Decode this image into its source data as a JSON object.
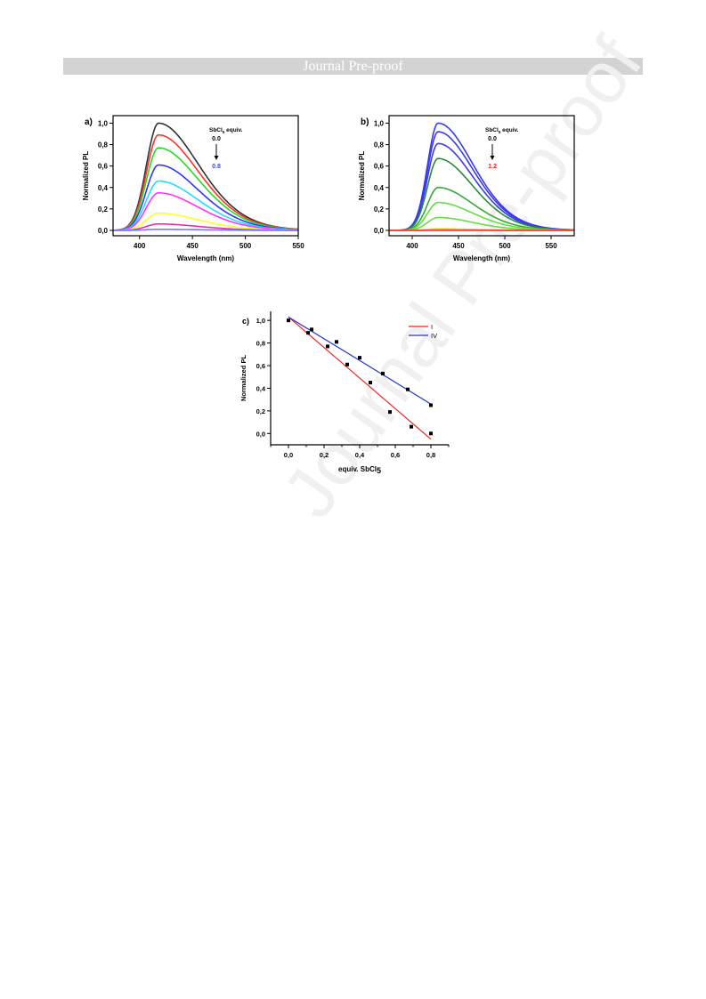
{
  "header": {
    "title": "Journal Pre-proof"
  },
  "watermark": {
    "text": "Journal Pre-proof"
  },
  "colors": {
    "header_bg": "#d3d3d3",
    "watermark": "#f0f0f0"
  },
  "chart_data": [
    {
      "type": "line",
      "panel_label": "a)",
      "xlabel": "Wavelength (nm)",
      "ylabel": "Normalized PL",
      "xlim": [
        375,
        550
      ],
      "ylim": [
        -0.05,
        1.07
      ],
      "xticks": [
        400,
        450,
        500,
        550
      ],
      "yticks": [
        0.0,
        0.2,
        0.4,
        0.6,
        0.8,
        1.0
      ],
      "ytick_labels": [
        "0,0",
        "0,2",
        "0,4",
        "0,6",
        "0,8",
        "1,0"
      ],
      "annotation": {
        "title": "SbCl",
        "title_sub": "5",
        "title_suffix": " equiv.",
        "start": "0.0",
        "end": "0.8",
        "end_color": "#2f4fd0"
      },
      "peak_nm": 418,
      "series": [
        {
          "peak": 1.0,
          "color": "#333333"
        },
        {
          "peak": 0.89,
          "color": "#ff3030"
        },
        {
          "peak": 0.77,
          "color": "#22dd22"
        },
        {
          "peak": 0.61,
          "color": "#3333ff"
        },
        {
          "peak": 0.46,
          "color": "#22ddff"
        },
        {
          "peak": 0.35,
          "color": "#ff33ff"
        },
        {
          "peak": 0.16,
          "color": "#ffff22"
        },
        {
          "peak": 0.06,
          "color": "#dd33aa"
        },
        {
          "peak": 0.01,
          "color": "#7777ff"
        }
      ]
    },
    {
      "type": "line",
      "panel_label": "b)",
      "xlabel": "Wavelength (nm)",
      "ylabel": "Normalized PL",
      "xlim": [
        375,
        575
      ],
      "ylim": [
        -0.05,
        1.07
      ],
      "xticks": [
        400,
        450,
        500,
        550
      ],
      "yticks": [
        0.0,
        0.2,
        0.4,
        0.6,
        0.8,
        1.0
      ],
      "ytick_labels": [
        "0,0",
        "0,2",
        "0,4",
        "0,6",
        "0,8",
        "1,0"
      ],
      "annotation": {
        "title": "SbCl",
        "title_sub": "5",
        "title_suffix": " equiv.",
        "start": "0.0",
        "end": "1.2",
        "end_color": "#ee2222"
      },
      "peak_nm": 428,
      "series": [
        {
          "peak": 1.0,
          "color": "#3a3aee"
        },
        {
          "peak": 0.92,
          "color": "#3a3aee"
        },
        {
          "peak": 0.81,
          "color": "#3a3aee"
        },
        {
          "peak": 0.67,
          "color": "#2a8a3a"
        },
        {
          "peak": 0.4,
          "color": "#33aa33"
        },
        {
          "peak": 0.26,
          "color": "#66dd44"
        },
        {
          "peak": 0.12,
          "color": "#66dd44"
        },
        {
          "peak": 0.015,
          "color": "#dddd22"
        },
        {
          "peak": 0.005,
          "color": "#ff8833"
        },
        {
          "peak": 0.0,
          "color": "#ee3333"
        }
      ]
    },
    {
      "type": "scatter",
      "panel_label": "c)",
      "xlabel": "equiv. SbCl",
      "xlabel_sub": "5",
      "ylabel": "Normalized PL",
      "xlim": [
        -0.1,
        0.9
      ],
      "ylim": [
        -0.1,
        1.08
      ],
      "xticks": [
        0.0,
        0.2,
        0.4,
        0.6,
        0.8
      ],
      "xtick_labels": [
        "0,0",
        "0,2",
        "0,4",
        "0,6",
        "0,8"
      ],
      "yticks": [
        0.0,
        0.2,
        0.4,
        0.6,
        0.8,
        1.0
      ],
      "ytick_labels": [
        "0,0",
        "0,2",
        "0,4",
        "0,6",
        "0,8",
        "1,0"
      ],
      "legend_position": "top-right",
      "series": [
        {
          "name": "I",
          "color": "#ee2222",
          "fit": [
            [
              0.0,
              1.03
            ],
            [
              0.8,
              -0.05
            ]
          ],
          "points": [
            [
              0.0,
              1.0
            ],
            [
              0.11,
              0.89
            ],
            [
              0.22,
              0.77
            ],
            [
              0.33,
              0.61
            ],
            [
              0.46,
              0.45
            ],
            [
              0.57,
              0.19
            ],
            [
              0.69,
              0.06
            ],
            [
              0.8,
              0.0
            ]
          ]
        },
        {
          "name": "IV",
          "color": "#2233cc",
          "fit": [
            [
              0.0,
              1.03
            ],
            [
              0.8,
              0.26
            ]
          ],
          "points": [
            [
              0.13,
              0.92
            ],
            [
              0.27,
              0.81
            ],
            [
              0.4,
              0.67
            ],
            [
              0.53,
              0.53
            ],
            [
              0.67,
              0.39
            ],
            [
              0.8,
              0.25
            ]
          ]
        }
      ]
    }
  ]
}
